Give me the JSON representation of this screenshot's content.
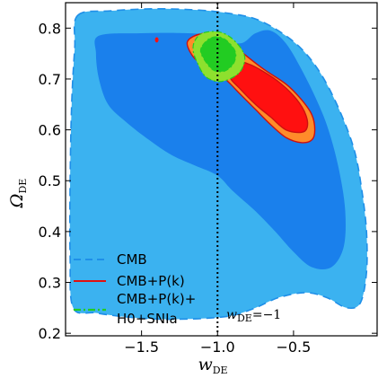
{
  "chart_data": {
    "type": "contour",
    "xlabel": "w",
    "xlabel_sub": "DE",
    "ylabel": "Ω",
    "ylabel_sub": "DE",
    "xlim": [
      -2.0,
      0.05
    ],
    "ylim": [
      0.195,
      0.85
    ],
    "x_ticks": [
      -1.5,
      -1.0,
      -0.5
    ],
    "x_tick_labels": [
      "−1.5",
      "−1.0",
      "−0.5"
    ],
    "y_ticks": [
      0.2,
      0.3,
      0.4,
      0.5,
      0.6,
      0.7,
      0.8
    ],
    "y_tick_labels": [
      "0.2",
      "0.3",
      "0.4",
      "0.5",
      "0.6",
      "0.7",
      "0.8"
    ],
    "reference_line": {
      "x": -1.0,
      "style": "dotted",
      "label": "w",
      "label_sub": "DE",
      "label_suffix": "=−1"
    },
    "legend": {
      "placement": "bottom-left",
      "entries": [
        {
          "label": "CMB",
          "style": "dashed",
          "color": "#1f8fe8"
        },
        {
          "label": "CMB+P(k)",
          "style": "solid",
          "color": "#e01010"
        },
        {
          "label_line1": "CMB+P(k)+",
          "label_line2": "H0+SNIa",
          "style": "dashdot",
          "color": "#22cc22"
        }
      ]
    },
    "series": [
      {
        "name": "CMB",
        "level": "95%",
        "color": "#3bb2f0",
        "outline": [
          [
            -1.92,
            0.825
          ],
          [
            -1.7,
            0.834
          ],
          [
            -1.4,
            0.838
          ],
          [
            -1.1,
            0.835
          ],
          [
            -0.9,
            0.828
          ],
          [
            -0.75,
            0.818
          ],
          [
            -0.6,
            0.795
          ],
          [
            -0.45,
            0.76
          ],
          [
            -0.32,
            0.71
          ],
          [
            -0.2,
            0.64
          ],
          [
            -0.1,
            0.56
          ],
          [
            -0.05,
            0.48
          ],
          [
            -0.02,
            0.4
          ],
          [
            -0.02,
            0.32
          ],
          [
            -0.06,
            0.26
          ],
          [
            -0.15,
            0.25
          ],
          [
            -0.28,
            0.27
          ],
          [
            -0.42,
            0.28
          ],
          [
            -0.6,
            0.27
          ],
          [
            -0.75,
            0.25
          ],
          [
            -0.9,
            0.235
          ],
          [
            -1.05,
            0.23
          ],
          [
            -1.2,
            0.228
          ],
          [
            -1.4,
            0.228
          ],
          [
            -1.6,
            0.232
          ],
          [
            -1.8,
            0.24
          ],
          [
            -1.95,
            0.25
          ],
          [
            -1.97,
            0.35
          ],
          [
            -1.97,
            0.5
          ],
          [
            -1.96,
            0.65
          ],
          [
            -1.94,
            0.76
          ]
        ]
      },
      {
        "name": "CMB",
        "level": "68%",
        "color": "#1a80ec",
        "outline": [
          [
            -1.78,
            0.785
          ],
          [
            -1.5,
            0.79
          ],
          [
            -1.2,
            0.79
          ],
          [
            -1.0,
            0.785
          ],
          [
            -0.85,
            0.77
          ],
          [
            -0.75,
            0.79
          ],
          [
            -0.65,
            0.795
          ],
          [
            -0.55,
            0.77
          ],
          [
            -0.45,
            0.72
          ],
          [
            -0.35,
            0.66
          ],
          [
            -0.27,
            0.6
          ],
          [
            -0.2,
            0.52
          ],
          [
            -0.16,
            0.44
          ],
          [
            -0.17,
            0.37
          ],
          [
            -0.25,
            0.33
          ],
          [
            -0.38,
            0.33
          ],
          [
            -0.5,
            0.36
          ],
          [
            -0.62,
            0.4
          ],
          [
            -0.75,
            0.44
          ],
          [
            -0.9,
            0.48
          ],
          [
            -1.0,
            0.51
          ],
          [
            -1.15,
            0.53
          ],
          [
            -1.3,
            0.55
          ],
          [
            -1.45,
            0.58
          ],
          [
            -1.6,
            0.615
          ],
          [
            -1.72,
            0.65
          ],
          [
            -1.78,
            0.7
          ],
          [
            -1.8,
            0.75
          ]
        ]
      },
      {
        "name": "CMB+P(k)",
        "level": "95%",
        "color": "#ff8c2a",
        "outline": [
          [
            -1.2,
            0.77
          ],
          [
            -1.15,
            0.785
          ],
          [
            -1.05,
            0.79
          ],
          [
            -0.95,
            0.78
          ],
          [
            -0.85,
            0.755
          ],
          [
            -0.7,
            0.72
          ],
          [
            -0.55,
            0.69
          ],
          [
            -0.45,
            0.66
          ],
          [
            -0.38,
            0.63
          ],
          [
            -0.36,
            0.6
          ],
          [
            -0.38,
            0.58
          ],
          [
            -0.45,
            0.575
          ],
          [
            -0.55,
            0.585
          ],
          [
            -0.65,
            0.61
          ],
          [
            -0.75,
            0.64
          ],
          [
            -0.85,
            0.67
          ],
          [
            -0.95,
            0.7
          ],
          [
            -1.05,
            0.72
          ],
          [
            -1.15,
            0.74
          ]
        ]
      },
      {
        "name": "CMB+P(k)",
        "level": "68%",
        "color": "#ff1010",
        "outline": [
          [
            -0.9,
            0.735
          ],
          [
            -0.8,
            0.73
          ],
          [
            -0.7,
            0.715
          ],
          [
            -0.58,
            0.69
          ],
          [
            -0.48,
            0.66
          ],
          [
            -0.42,
            0.63
          ],
          [
            -0.41,
            0.605
          ],
          [
            -0.45,
            0.595
          ],
          [
            -0.55,
            0.6
          ],
          [
            -0.65,
            0.625
          ],
          [
            -0.75,
            0.65
          ],
          [
            -0.85,
            0.68
          ],
          [
            -0.92,
            0.705
          ]
        ]
      },
      {
        "name": "CMB+P(k)+H0+SNIa",
        "level": "95%",
        "color": "#8ee02e",
        "outline": [
          [
            -1.15,
            0.775
          ],
          [
            -1.1,
            0.79
          ],
          [
            -1.0,
            0.793
          ],
          [
            -0.92,
            0.783
          ],
          [
            -0.85,
            0.762
          ],
          [
            -0.82,
            0.74
          ],
          [
            -0.85,
            0.715
          ],
          [
            -0.92,
            0.7
          ],
          [
            -1.0,
            0.695
          ],
          [
            -1.08,
            0.705
          ],
          [
            -1.13,
            0.73
          ],
          [
            -1.16,
            0.755
          ]
        ]
      },
      {
        "name": "CMB+P(k)+H0+SNIa",
        "level": "68%",
        "color": "#22cc22",
        "outline": [
          [
            -1.1,
            0.765
          ],
          [
            -1.05,
            0.78
          ],
          [
            -0.98,
            0.782
          ],
          [
            -0.92,
            0.77
          ],
          [
            -0.88,
            0.75
          ],
          [
            -0.9,
            0.728
          ],
          [
            -0.96,
            0.715
          ],
          [
            -1.03,
            0.718
          ],
          [
            -1.08,
            0.735
          ],
          [
            -1.11,
            0.752
          ]
        ]
      }
    ],
    "isolated_region": {
      "x": -1.4,
      "y": 0.777,
      "color": "#ff1010"
    }
  }
}
